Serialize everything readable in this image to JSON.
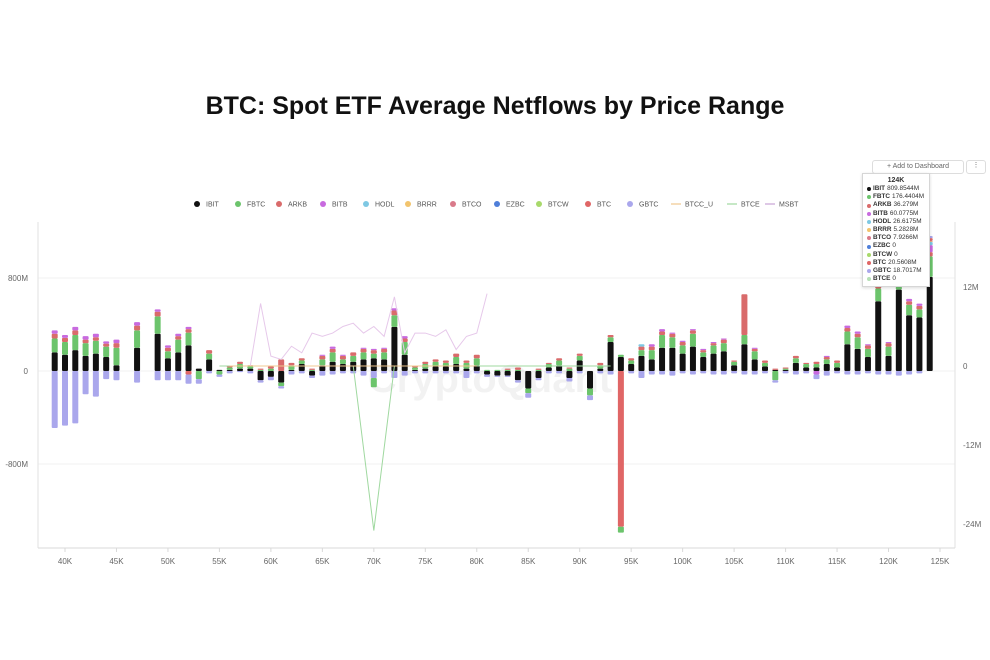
{
  "title": "BTC: Spot ETF Average Netflows by Price Range",
  "watermark": "CryptoQuant",
  "toolbar": {
    "add_label": "+ Add to Dashboard",
    "more_label": "⋮"
  },
  "tooltip": {
    "header": "124K",
    "rows": [
      {
        "name": "IBIT",
        "value": "809.8544M",
        "color": "#111111"
      },
      {
        "name": "FBTC",
        "value": "176.4404M",
        "color": "#6cc46c"
      },
      {
        "name": "ARKB",
        "value": "36.279M",
        "color": "#d96b6b"
      },
      {
        "name": "BITB",
        "value": "60.0775M",
        "color": "#c86adf"
      },
      {
        "name": "HODL",
        "value": "26.6175M",
        "color": "#7ec8e3"
      },
      {
        "name": "BRRR",
        "value": "5.2828M",
        "color": "#f2c46d"
      },
      {
        "name": "BTCO",
        "value": "7.9266M",
        "color": "#d97a8a"
      },
      {
        "name": "EZBC",
        "value": "0",
        "color": "#4f7fd9"
      },
      {
        "name": "BTCW",
        "value": "0",
        "color": "#a8d96b"
      },
      {
        "name": "BTC",
        "value": "20.5608M",
        "color": "#e06666"
      },
      {
        "name": "GBTC",
        "value": "18.7017M",
        "color": "#aaa7ec"
      },
      {
        "name": "BTCE",
        "value": "0",
        "color": "#b5e0b5"
      }
    ]
  },
  "chart_data": {
    "type": "bar",
    "stacked": true,
    "xlabel": "",
    "ylabel": "",
    "x_ticks": [
      "40K",
      "45K",
      "50K",
      "55K",
      "60K",
      "65K",
      "70K",
      "75K",
      "80K",
      "85K",
      "90K",
      "95K",
      "100K",
      "105K",
      "110K",
      "115K",
      "120K",
      "125K"
    ],
    "y_left_ticks": [
      "800M",
      "0",
      "-800M"
    ],
    "y_right_ticks": [
      "12M",
      "0",
      "-12M",
      "-24M"
    ],
    "ylim_left": [
      -1500,
      1150
    ],
    "ylim_right": [
      -27,
      13.5
    ],
    "x_range": [
      38,
      125
    ],
    "legend": {
      "position": "top",
      "items": [
        {
          "name": "IBIT",
          "color": "#111111",
          "shape": "dot"
        },
        {
          "name": "FBTC",
          "color": "#6cc46c",
          "shape": "dot"
        },
        {
          "name": "ARKB",
          "color": "#d96b6b",
          "shape": "dot"
        },
        {
          "name": "BITB",
          "color": "#c86adf",
          "shape": "dot"
        },
        {
          "name": "HODL",
          "color": "#7ec8e3",
          "shape": "dot"
        },
        {
          "name": "BRRR",
          "color": "#f2c46d",
          "shape": "dot"
        },
        {
          "name": "BTCO",
          "color": "#d97a8a",
          "shape": "dot"
        },
        {
          "name": "EZBC",
          "color": "#4f7fd9",
          "shape": "dot"
        },
        {
          "name": "BTCW",
          "color": "#a8d96b",
          "shape": "dot"
        },
        {
          "name": "BTC",
          "color": "#e06666",
          "shape": "dot"
        },
        {
          "name": "GBTC",
          "color": "#aaa7ec",
          "shape": "dot"
        },
        {
          "name": "BTCC_U",
          "color": "#f0c890",
          "shape": "line"
        },
        {
          "name": "BTCE",
          "color": "#9fd89f",
          "shape": "line"
        },
        {
          "name": "MSBT",
          "color": "#c9a3d6",
          "shape": "line"
        }
      ]
    },
    "stack_order": [
      "IBIT",
      "FBTC",
      "ARKB",
      "BITB",
      "HODL",
      "BRRR",
      "BTCO",
      "EZBC",
      "BTCW",
      "BTC",
      "GBTC"
    ],
    "colors": {
      "IBIT": "#111111",
      "FBTC": "#6cc46c",
      "ARKB": "#d96b6b",
      "BITB": "#c86adf",
      "HODL": "#7ec8e3",
      "BRRR": "#f2c46d",
      "BTCO": "#d97a8a",
      "EZBC": "#4f7fd9",
      "BTCW": "#a8d96b",
      "BTC": "#e06666",
      "GBTC": "#aaa7ec"
    },
    "bars": [
      {
        "x": 39,
        "IBIT": 160,
        "FBTC": 120,
        "ARKB": 40,
        "BITB": 30,
        "GBTC": -490
      },
      {
        "x": 40,
        "IBIT": 140,
        "FBTC": 110,
        "ARKB": 35,
        "BITB": 25,
        "GBTC": -470
      },
      {
        "x": 41,
        "IBIT": 180,
        "FBTC": 130,
        "ARKB": 40,
        "BITB": 30,
        "GBTC": -450
      },
      {
        "x": 42,
        "IBIT": 130,
        "FBTC": 110,
        "ARKB": 30,
        "BITB": 30,
        "GBTC": -200
      },
      {
        "x": 43,
        "IBIT": 150,
        "FBTC": 110,
        "ARKB": 30,
        "BITB": 30,
        "GBTC": -220
      },
      {
        "x": 44,
        "IBIT": 120,
        "FBTC": 90,
        "ARKB": 25,
        "BITB": 20,
        "GBTC": -70
      },
      {
        "x": 45,
        "IBIT": 50,
        "FBTC": 150,
        "ARKB": 40,
        "BITB": 30,
        "GBTC": -80
      },
      {
        "x": 47,
        "IBIT": 200,
        "FBTC": 150,
        "ARKB": 40,
        "BITB": 30,
        "GBTC": -100
      },
      {
        "x": 49,
        "IBIT": 320,
        "FBTC": 150,
        "ARKB": 40,
        "BITB": 20,
        "GBTC": -80
      },
      {
        "x": 50,
        "IBIT": 110,
        "FBTC": 60,
        "ARKB": 30,
        "BITB": 20,
        "GBTC": -80
      },
      {
        "x": 51,
        "IBIT": 160,
        "FBTC": 110,
        "ARKB": 30,
        "BITB": 20,
        "GBTC": -80
      },
      {
        "x": 52,
        "IBIT": 220,
        "FBTC": 110,
        "ARKB": 30,
        "BITB": 20,
        "GBTC": -80,
        "BTC": -30
      },
      {
        "x": 53,
        "IBIT": 20,
        "FBTC": -70,
        "GBTC": -40
      },
      {
        "x": 54,
        "IBIT": 100,
        "FBTC": 50,
        "ARKB": 30,
        "GBTC": -20
      },
      {
        "x": 55,
        "IBIT": 10,
        "FBTC": -30,
        "GBTC": -20
      },
      {
        "x": 56,
        "IBIT": 10,
        "FBTC": 20,
        "ARKB": 10,
        "GBTC": -20
      },
      {
        "x": 57,
        "IBIT": 20,
        "FBTC": 40,
        "ARKB": 20,
        "GBTC": -10
      },
      {
        "x": 58,
        "IBIT": 20,
        "FBTC": 20,
        "ARKB": 10,
        "GBTC": -20
      },
      {
        "x": 59,
        "IBIT": -80,
        "FBTC": 10,
        "ARKB": 10,
        "GBTC": -20
      },
      {
        "x": 60,
        "IBIT": -50,
        "FBTC": 20,
        "ARKB": 20,
        "GBTC": -30
      },
      {
        "x": 61,
        "IBIT": -100,
        "ARKB": 100,
        "FBTC": -30,
        "GBTC": -20
      },
      {
        "x": 62,
        "IBIT": 10,
        "FBTC": 40,
        "ARKB": 20,
        "GBTC": -30
      },
      {
        "x": 63,
        "IBIT": 60,
        "FBTC": 30,
        "ARKB": 20,
        "GBTC": -20
      },
      {
        "x": 64,
        "IBIT": -40,
        "FBTC": 10,
        "ARKB": 10,
        "GBTC": -20
      },
      {
        "x": 65,
        "IBIT": 50,
        "FBTC": 50,
        "ARKB": 30,
        "BITB": 10,
        "GBTC": -40
      },
      {
        "x": 66,
        "IBIT": 80,
        "FBTC": 80,
        "ARKB": 30,
        "BITB": 20,
        "GBTC": -30
      },
      {
        "x": 67,
        "IBIT": 60,
        "FBTC": 40,
        "ARKB": 30,
        "BITB": 10,
        "GBTC": -20
      },
      {
        "x": 68,
        "IBIT": 80,
        "FBTC": 50,
        "ARKB": 30,
        "GBTC": -20
      },
      {
        "x": 69,
        "IBIT": 100,
        "FBTC": 60,
        "ARKB": 30,
        "BITB": 10,
        "GBTC": -40
      },
      {
        "x": 70,
        "IBIT": 110,
        "FBTC": 40,
        "ARKB": 30,
        "BITB": 10,
        "GBTC": -60,
        "FBTC2": -80
      },
      {
        "x": 71,
        "IBIT": 100,
        "FBTC": 60,
        "ARKB": 30,
        "BITB": 10,
        "GBTC": -20
      },
      {
        "x": 72,
        "IBIT": 380,
        "FBTC": 100,
        "ARKB": 40,
        "BITB": 20,
        "GBTC": -60
      },
      {
        "x": 73,
        "IBIT": 140,
        "FBTC": 110,
        "ARKB": 30,
        "BITB": 20,
        "GBTC": -40
      },
      {
        "x": 74,
        "IBIT": 10,
        "FBTC": 20,
        "ARKB": 10,
        "GBTC": -20
      },
      {
        "x": 75,
        "IBIT": 20,
        "FBTC": 40,
        "ARKB": 20,
        "GBTC": -20
      },
      {
        "x": 76,
        "IBIT": 40,
        "FBTC": 40,
        "ARKB": 20,
        "GBTC": -20
      },
      {
        "x": 77,
        "IBIT": 40,
        "FBTC": 30,
        "ARKB": 20,
        "GBTC": -20
      },
      {
        "x": 78,
        "IBIT": 60,
        "FBTC": 60,
        "ARKB": 30,
        "GBTC": -20
      },
      {
        "x": 79,
        "IBIT": 20,
        "FBTC": 50,
        "ARKB": 20,
        "GBTC": -60
      },
      {
        "x": 80,
        "IBIT": 50,
        "FBTC": 60,
        "ARKB": 30,
        "GBTC": -20
      },
      {
        "x": 81,
        "IBIT": -30,
        "FBTC": 10,
        "GBTC": -20
      },
      {
        "x": 82,
        "IBIT": -40,
        "FBTC": 10,
        "GBTC": -10
      },
      {
        "x": 83,
        "IBIT": -40,
        "FBTC": 10,
        "ARKB": 10,
        "GBTC": -10
      },
      {
        "x": 84,
        "IBIT": -80,
        "FBTC": 10,
        "ARKB": 20,
        "GBTC": -20
      },
      {
        "x": 85,
        "IBIT": -150,
        "FBTC": -40,
        "GBTC": -40
      },
      {
        "x": 86,
        "IBIT": -60,
        "FBTC": 10,
        "ARKB": 10,
        "GBTC": -20
      },
      {
        "x": 87,
        "IBIT": 30,
        "FBTC": 30,
        "ARKB": 10,
        "GBTC": -20
      },
      {
        "x": 88,
        "IBIT": 50,
        "FBTC": 40,
        "ARKB": 20,
        "GBTC": -20
      },
      {
        "x": 89,
        "IBIT": -60,
        "FBTC": 20,
        "ARKB": 10,
        "GBTC": -30
      },
      {
        "x": 90,
        "IBIT": 90,
        "FBTC": 40,
        "ARKB": 20,
        "GBTC": -20
      },
      {
        "x": 91,
        "IBIT": -150,
        "FBTC": -60,
        "GBTC": -40
      },
      {
        "x": 92,
        "IBIT": 20,
        "FBTC": 30,
        "ARKB": 20,
        "GBTC": -20
      },
      {
        "x": 93,
        "IBIT": 250,
        "FBTC": 40,
        "ARKB": 20,
        "GBTC": -30
      },
      {
        "x": 94,
        "IBIT": 120,
        "FBTC": 20,
        "BTC": -1340,
        "FBTC2": -50
      },
      {
        "x": 95,
        "IBIT": 60,
        "FBTC": 30,
        "ARKB": 20,
        "GBTC": -20
      },
      {
        "x": 96,
        "IBIT": 130,
        "FBTC": 50,
        "ARKB": 30,
        "HODL": 20,
        "GBTC": -60
      },
      {
        "x": 97,
        "IBIT": 100,
        "FBTC": 80,
        "ARKB": 30,
        "BITB": 20,
        "GBTC": -30
      },
      {
        "x": 98,
        "IBIT": 200,
        "FBTC": 110,
        "ARKB": 30,
        "BITB": 20,
        "GBTC": -30
      },
      {
        "x": 99,
        "IBIT": 200,
        "FBTC": 90,
        "ARKB": 30,
        "BITB": 10,
        "GBTC": -40
      },
      {
        "x": 100,
        "IBIT": 150,
        "FBTC": 70,
        "ARKB": 30,
        "BITB": 10,
        "GBTC": -20
      },
      {
        "x": 101,
        "IBIT": 210,
        "FBTC": 110,
        "ARKB": 30,
        "BITB": 10,
        "GBTC": -30
      },
      {
        "x": 102,
        "IBIT": 120,
        "FBTC": 40,
        "ARKB": 20,
        "BITB": 10,
        "GBTC": -20
      },
      {
        "x": 103,
        "IBIT": 150,
        "FBTC": 70,
        "ARKB": 20,
        "BITB": 10,
        "GBTC": -30
      },
      {
        "x": 104,
        "IBIT": 170,
        "FBTC": 70,
        "ARKB": 30,
        "BITB": 10,
        "GBTC": -30
      },
      {
        "x": 105,
        "IBIT": 50,
        "FBTC": 30,
        "ARKB": 10,
        "GBTC": -20
      },
      {
        "x": 106,
        "IBIT": 230,
        "FBTC": 80,
        "ARKB": 350,
        "GBTC": -30
      },
      {
        "x": 107,
        "IBIT": 100,
        "FBTC": 70,
        "ARKB": 20,
        "BITB": 10,
        "GBTC": -30
      },
      {
        "x": 108,
        "IBIT": 40,
        "FBTC": 30,
        "ARKB": 20,
        "GBTC": -20
      },
      {
        "x": 109,
        "IBIT": 10,
        "FBTC": -80,
        "ARKB": 10,
        "GBTC": -20
      },
      {
        "x": 110,
        "IBIT": 10,
        "FBTC": 10,
        "ARKB": 10,
        "GBTC": -20
      },
      {
        "x": 111,
        "IBIT": 70,
        "FBTC": 40,
        "ARKB": 20,
        "GBTC": -30
      },
      {
        "x": 112,
        "IBIT": 30,
        "FBTC": 30,
        "ARKB": 10,
        "GBTC": -20
      },
      {
        "x": 113,
        "IBIT": 30,
        "FBTC": 30,
        "ARKB": 20,
        "BITB": -30,
        "GBTC": -40
      },
      {
        "x": 114,
        "IBIT": 60,
        "FBTC": 40,
        "ARKB": 20,
        "BITB": 10,
        "GBTC": -40
      },
      {
        "x": 115,
        "IBIT": 30,
        "FBTC": 40,
        "ARKB": 20,
        "GBTC": -20
      },
      {
        "x": 116,
        "IBIT": 230,
        "FBTC": 110,
        "ARKB": 30,
        "BITB": 20,
        "GBTC": -30
      },
      {
        "x": 117,
        "IBIT": 190,
        "FBTC": 100,
        "ARKB": 30,
        "BITB": 20,
        "GBTC": -30
      },
      {
        "x": 118,
        "IBIT": 120,
        "FBTC": 70,
        "ARKB": 30,
        "BITB": 10,
        "GBTC": -20
      },
      {
        "x": 119,
        "IBIT": 600,
        "FBTC": 110,
        "ARKB": 30,
        "BITB": 20,
        "GBTC": -30
      },
      {
        "x": 120,
        "IBIT": 130,
        "FBTC": 80,
        "ARKB": 30,
        "BITB": 10,
        "GBTC": -30
      },
      {
        "x": 121,
        "IBIT": 700,
        "FBTC": 110,
        "ARKB": 40,
        "BITB": 20,
        "GBTC": -40
      },
      {
        "x": 122,
        "IBIT": 480,
        "FBTC": 90,
        "ARKB": 30,
        "BITB": 20,
        "GBTC": -30
      },
      {
        "x": 123,
        "IBIT": 460,
        "FBTC": 70,
        "ARKB": 30,
        "BITB": 20,
        "GBTC": -20
      },
      {
        "x": 124,
        "IBIT": 809.85,
        "FBTC": 176.44,
        "ARKB": 36.28,
        "BITB": 60.08,
        "HODL": 26.62,
        "BRRR": 5.28,
        "BTCO": 7.93,
        "BTC": 20.56,
        "GBTC": 18.7
      }
    ],
    "lines": [
      {
        "name": "BTCE",
        "color": "#9fd89f",
        "axis": "right",
        "points": [
          [
            55,
            0
          ],
          [
            60,
            0
          ],
          [
            65,
            0
          ],
          [
            68,
            0
          ],
          [
            70,
            -25
          ],
          [
            72,
            0
          ],
          [
            75,
            0
          ],
          [
            80,
            0
          ],
          [
            85,
            0
          ],
          [
            90,
            0
          ],
          [
            93,
            0
          ]
        ]
      },
      {
        "name": "MSBT",
        "color": "#e6c8ea",
        "axis": "right",
        "points": [
          [
            58,
            0
          ],
          [
            59,
            9.5
          ],
          [
            60,
            1.5
          ],
          [
            61,
            1
          ],
          [
            62,
            3
          ],
          [
            63,
            2
          ],
          [
            64,
            5
          ],
          [
            65,
            4.5
          ],
          [
            66,
            5
          ],
          [
            67,
            6
          ],
          [
            68,
            6.5
          ],
          [
            69,
            5
          ],
          [
            70,
            6
          ],
          [
            71,
            4.5
          ],
          [
            72,
            10.5
          ],
          [
            73,
            2
          ],
          [
            74,
            5
          ],
          [
            75,
            5
          ],
          [
            76,
            4.5
          ],
          [
            77,
            5.5
          ],
          [
            78,
            2.5
          ],
          [
            79,
            4.5
          ],
          [
            80,
            5
          ],
          [
            81,
            11
          ]
        ]
      },
      {
        "name": "BTCC_U",
        "color": "#f0c890",
        "axis": "right",
        "points": [
          [
            56,
            0
          ],
          [
            60,
            0
          ],
          [
            64,
            0
          ],
          [
            68,
            0
          ],
          [
            72,
            0
          ],
          [
            76,
            0
          ],
          [
            80,
            0
          ]
        ]
      }
    ]
  }
}
